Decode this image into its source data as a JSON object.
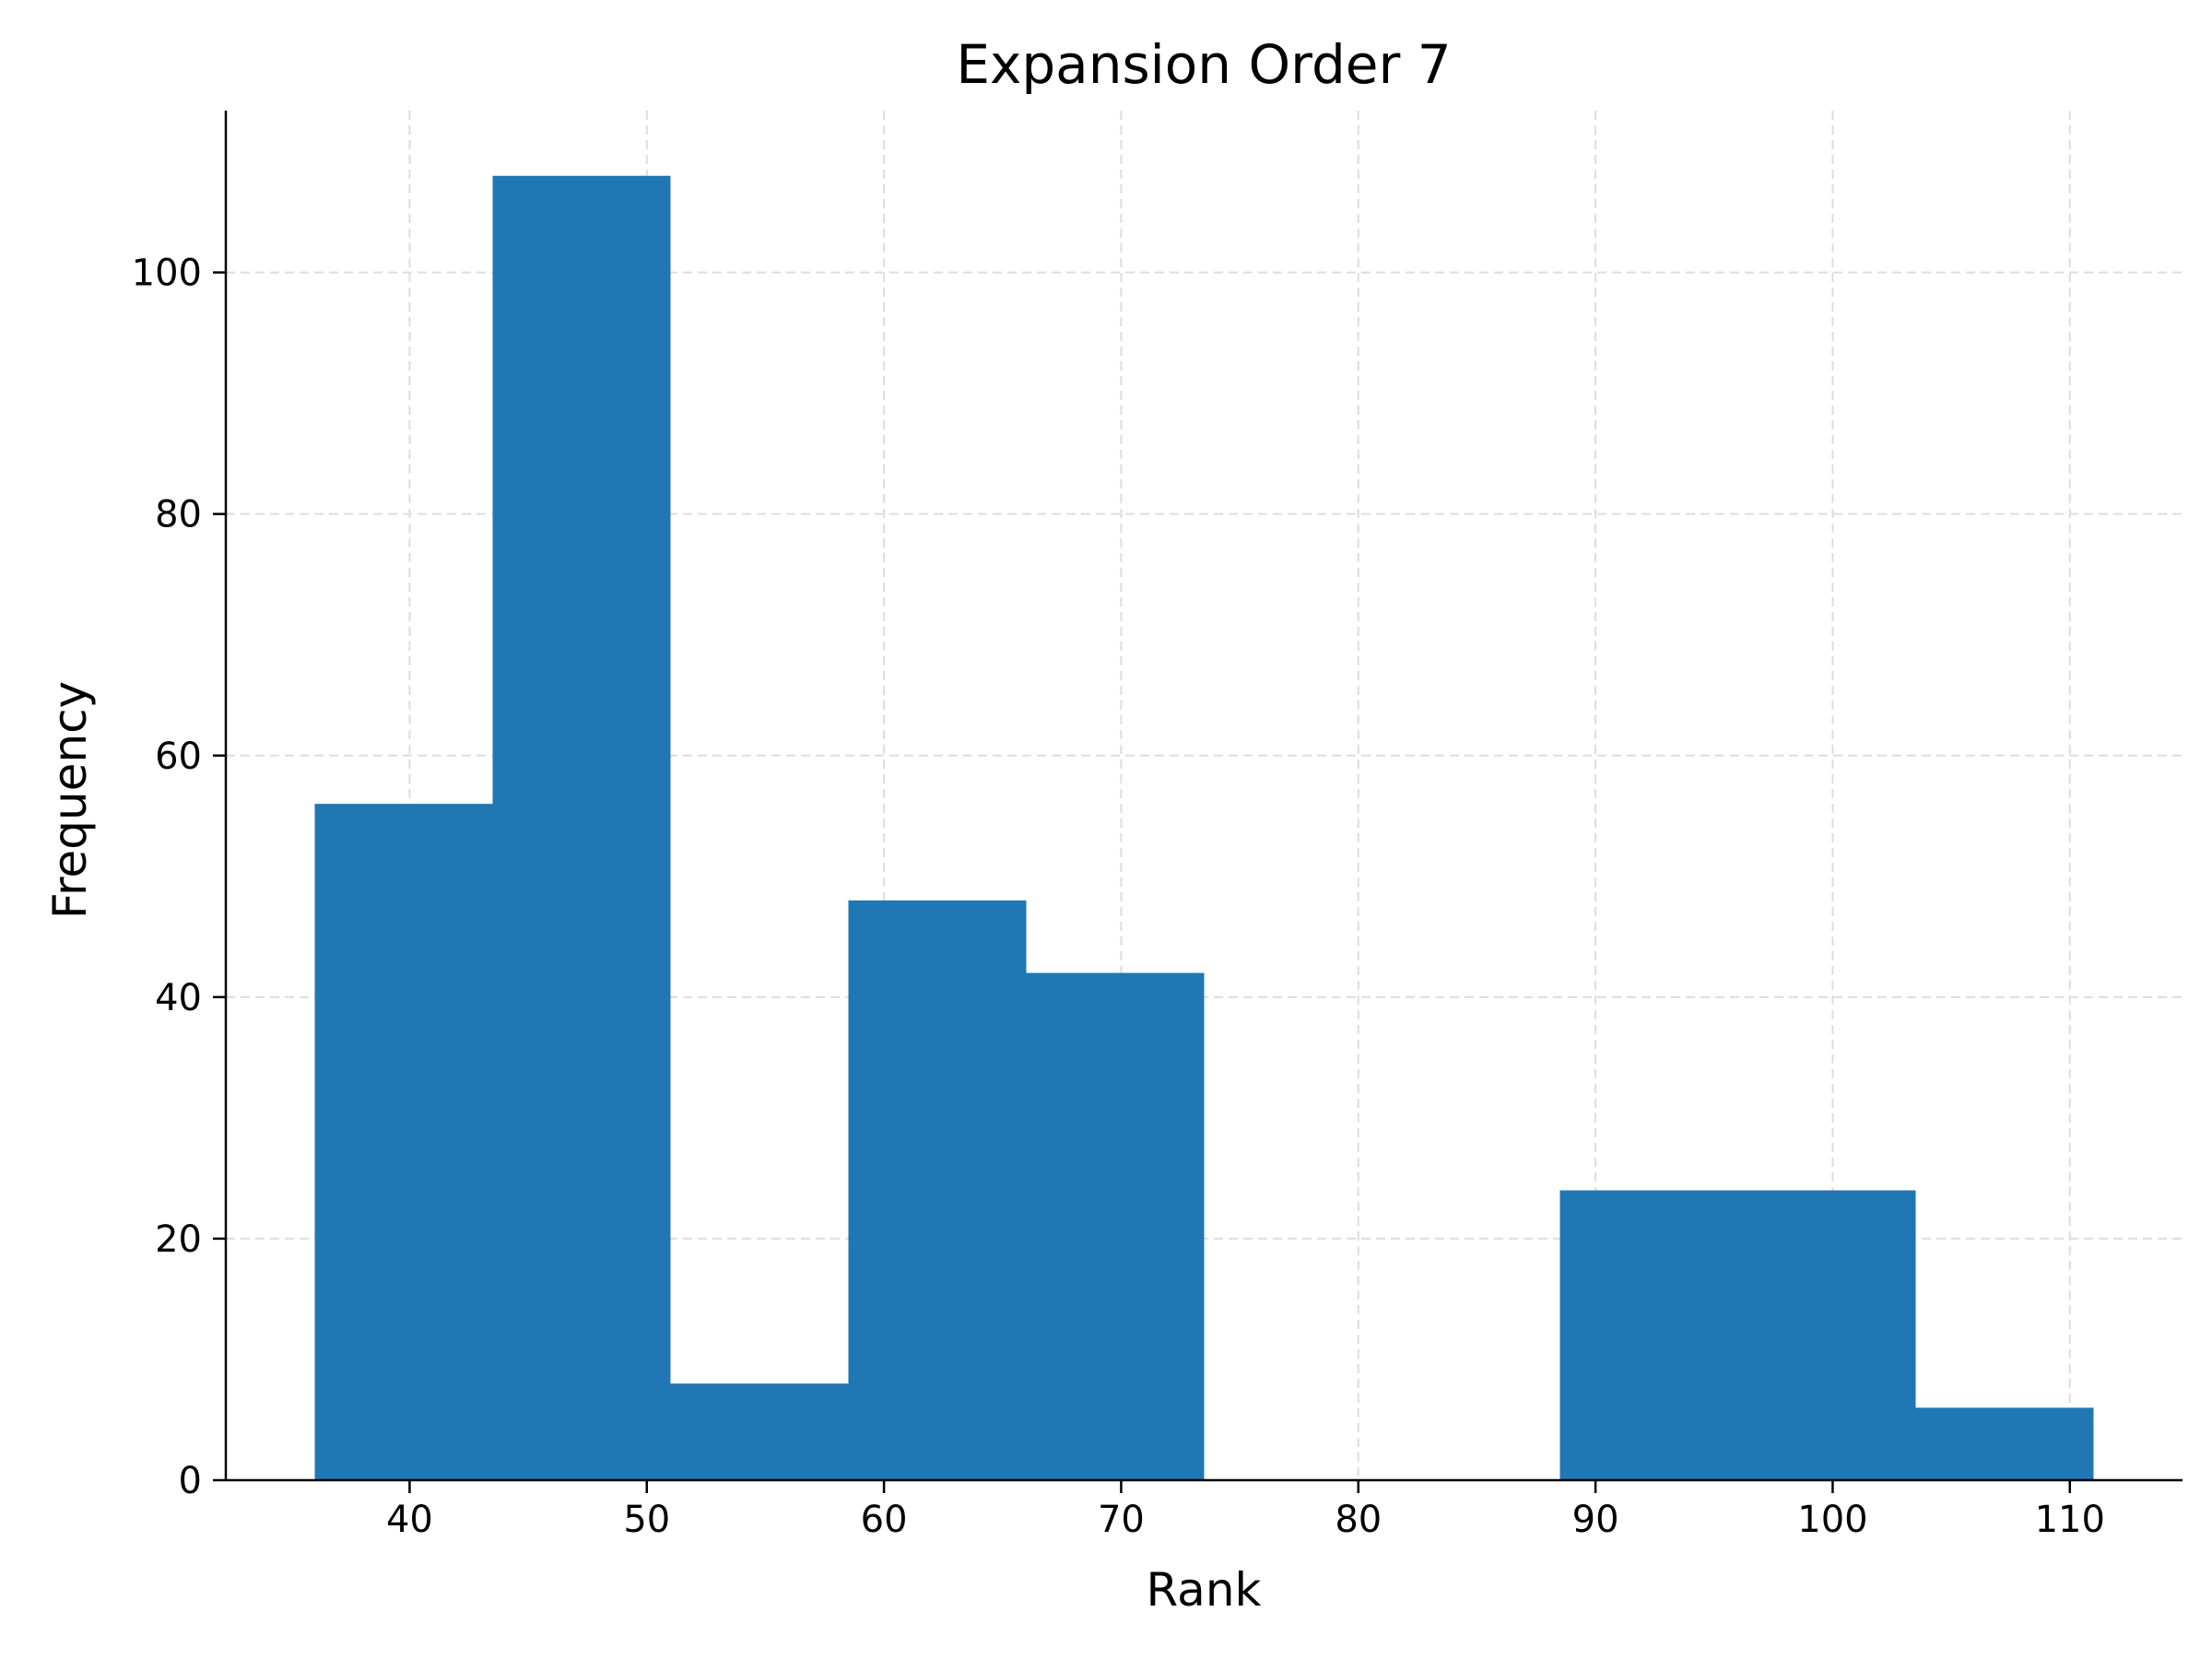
{
  "chart_data": {
    "type": "bar",
    "subtype": "histogram",
    "title": "Expansion Order 7",
    "xlabel": "Rank",
    "ylabel": "Frequency",
    "xlim": [
      32.25,
      114.75
    ],
    "ylim": [
      0,
      113.4
    ],
    "xticks": [
      40,
      50,
      60,
      70,
      80,
      90,
      100,
      110
    ],
    "yticks": [
      0,
      20,
      40,
      60,
      80,
      100
    ],
    "grid": true,
    "grid_style": "dashed",
    "bar_color": "#2077b4",
    "bins": [
      {
        "x0": 36.0,
        "x1": 43.5,
        "value": 56
      },
      {
        "x0": 43.5,
        "x1": 51.0,
        "value": 108
      },
      {
        "x0": 51.0,
        "x1": 58.5,
        "value": 8
      },
      {
        "x0": 58.5,
        "x1": 66.0,
        "value": 48
      },
      {
        "x0": 66.0,
        "x1": 73.5,
        "value": 42
      },
      {
        "x0": 73.5,
        "x1": 81.0,
        "value": 0
      },
      {
        "x0": 81.0,
        "x1": 88.5,
        "value": 0
      },
      {
        "x0": 88.5,
        "x1": 96.0,
        "value": 24
      },
      {
        "x0": 96.0,
        "x1": 103.5,
        "value": 24
      },
      {
        "x0": 103.5,
        "x1": 111.0,
        "value": 6
      }
    ]
  }
}
